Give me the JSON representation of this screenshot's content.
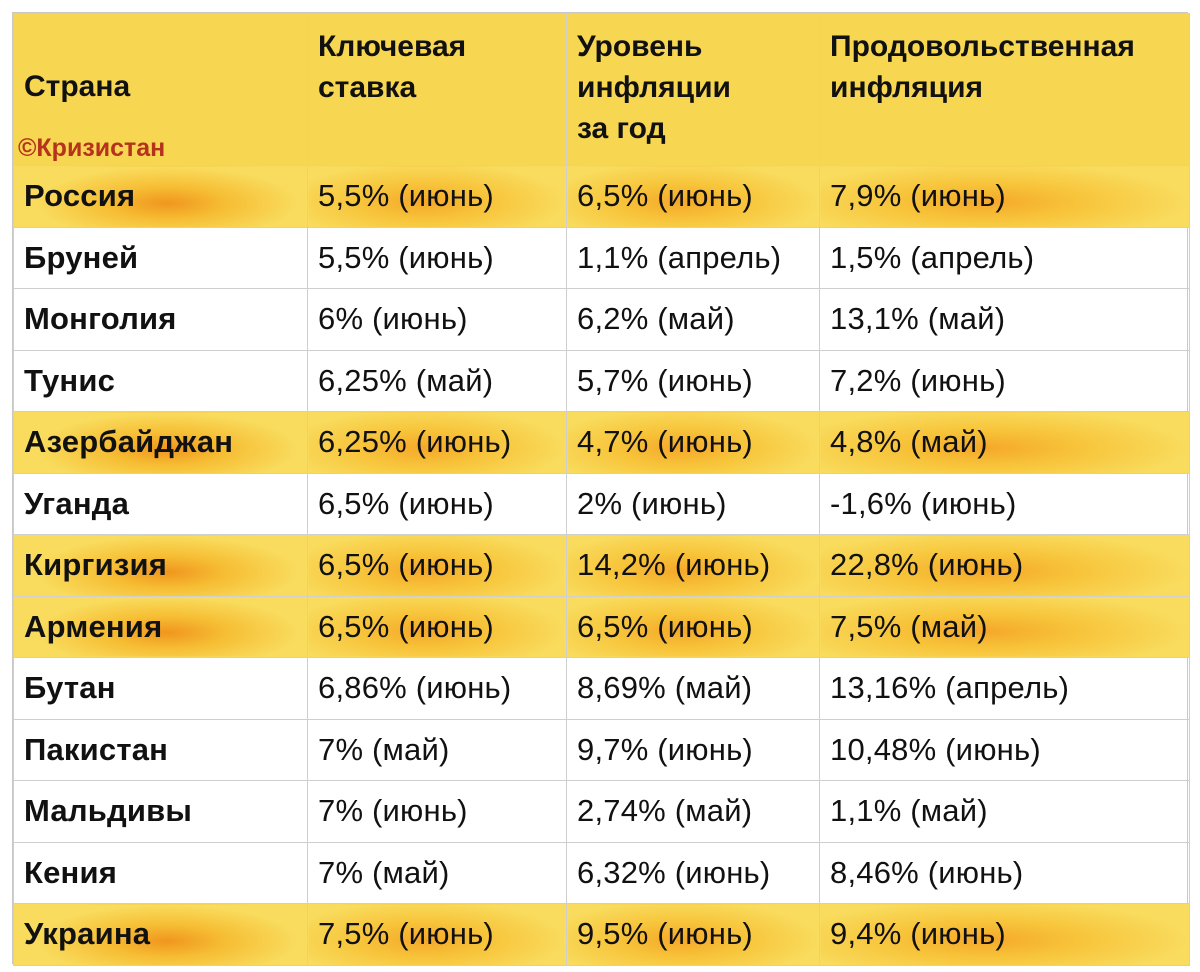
{
  "table": {
    "headers": {
      "country": "Страна",
      "key_rate": [
        "Ключевая",
        "ставка"
      ],
      "inflation": [
        "Уровень",
        "инфляции",
        "за год"
      ],
      "food_inflation": [
        "Продовольственная",
        "инфляция"
      ]
    },
    "watermark": "©Кризистан",
    "highlight_color": "#f7d652",
    "watermark_color": "#b5321c",
    "rows": [
      {
        "country": "Россия",
        "key_rate": "5,5% (июнь)",
        "inflation": "6,5% (июнь)",
        "food_inflation": "7,9% (июнь)",
        "highlighted": true
      },
      {
        "country": "Бруней",
        "key_rate": "5,5% (июнь)",
        "inflation": "1,1% (апрель)",
        "food_inflation": "1,5% (апрель)",
        "highlighted": false
      },
      {
        "country": "Монголия",
        "key_rate": "6% (июнь)",
        "inflation": "6,2% (май)",
        "food_inflation": "13,1% (май)",
        "highlighted": false
      },
      {
        "country": "Тунис",
        "key_rate": "6,25% (май)",
        "inflation": "5,7% (июнь)",
        "food_inflation": "7,2% (июнь)",
        "highlighted": false
      },
      {
        "country": "Азербайджан",
        "key_rate": "6,25% (июнь)",
        "inflation": "4,7% (июнь)",
        "food_inflation": "4,8% (май)",
        "highlighted": true
      },
      {
        "country": "Уганда",
        "key_rate": "6,5% (июнь)",
        "inflation": "2% (июнь)",
        "food_inflation": "-1,6% (июнь)",
        "highlighted": false
      },
      {
        "country": "Киргизия",
        "key_rate": "6,5% (июнь)",
        "inflation": "14,2% (июнь)",
        "food_inflation": "22,8% (июнь)",
        "highlighted": true
      },
      {
        "country": "Армения",
        "key_rate": "6,5% (июнь)",
        "inflation": "6,5% (июнь)",
        "food_inflation": "7,5% (май)",
        "highlighted": true
      },
      {
        "country": "Бутан",
        "key_rate": "6,86% (июнь)",
        "inflation": "8,69% (май)",
        "food_inflation": "13,16% (апрель)",
        "highlighted": false
      },
      {
        "country": "Пакистан",
        "key_rate": "7% (май)",
        "inflation": "9,7% (июнь)",
        "food_inflation": "10,48% (июнь)",
        "highlighted": false
      },
      {
        "country": "Мальдивы",
        "key_rate": "7% (июнь)",
        "inflation": "2,74% (май)",
        "food_inflation": "1,1% (май)",
        "highlighted": false
      },
      {
        "country": "Кения",
        "key_rate": "7% (май)",
        "inflation": "6,32% (июнь)",
        "food_inflation": "8,46% (июнь)",
        "highlighted": false
      },
      {
        "country": "Украина",
        "key_rate": "7,5% (июнь)",
        "inflation": "9,5% (июнь)",
        "food_inflation": "9,4% (июнь)",
        "highlighted": true
      }
    ]
  }
}
